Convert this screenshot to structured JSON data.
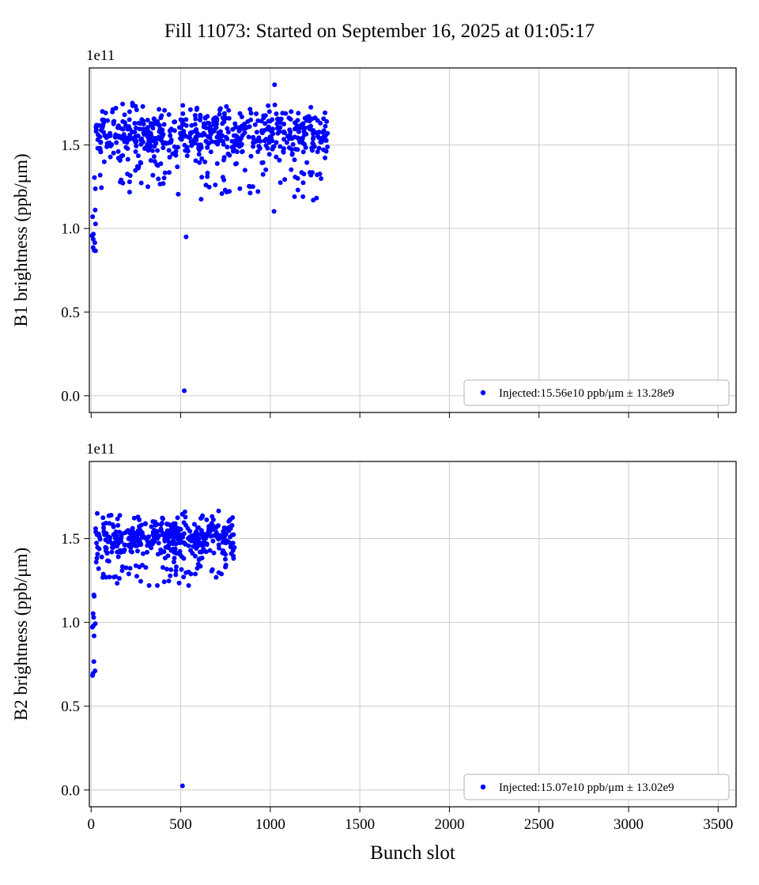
{
  "page": {
    "title": "Fill 11073: Started on September 16, 2025 at 01:05:17"
  },
  "chart_data": [
    {
      "type": "scatter",
      "name": "B1 brightness vs bunch slot",
      "ylabel": "B1 brightness (ppb/μm)",
      "xlabel": "Bunch slot",
      "offset_text": "1e11",
      "xlim": [
        -10,
        3600
      ],
      "ylim": [
        -0.1,
        1.96
      ],
      "xticks": [
        0,
        500,
        1000,
        1500,
        2000,
        2500,
        3000,
        3500
      ],
      "yticks": [
        0,
        0.5,
        1,
        1.5
      ],
      "grid": true,
      "marker_color": "#0000ff",
      "legend": {
        "label": "Injected:15.56e10 ppb/μm ± 13.28e9",
        "position": "lower right"
      },
      "summary": {
        "mean_e10": 15.56,
        "spread_e9": 13.28,
        "filled_slots_to": 1320
      },
      "seed": 42,
      "clusters": [
        {
          "n": 560,
          "x": [
            25,
            1320
          ],
          "y_mean": 1.57,
          "y_std": 0.075,
          "y_clip": [
            1.18,
            1.86
          ]
        },
        {
          "n": 90,
          "x": [
            30,
            1310
          ],
          "y_mean": 1.32,
          "y_std": 0.08,
          "y_clip": [
            1.1,
            1.48
          ]
        },
        {
          "n": 12,
          "x": [
            5,
            25
          ],
          "y_uniform": [
            0.85,
            1.32
          ]
        }
      ],
      "outliers": [
        [
          520,
          0.03
        ],
        [
          530,
          0.95
        ],
        [
          1240,
          1.17
        ]
      ]
    },
    {
      "type": "scatter",
      "name": "B2 brightness vs bunch slot",
      "ylabel": "B2 brightness (ppb/μm)",
      "xlabel": "Bunch slot",
      "offset_text": "1e11",
      "xlim": [
        -10,
        3600
      ],
      "ylim": [
        -0.1,
        1.96
      ],
      "xticks": [
        0,
        500,
        1000,
        1500,
        2000,
        2500,
        3000,
        3500
      ],
      "yticks": [
        0,
        0.5,
        1,
        1.5
      ],
      "grid": true,
      "marker_color": "#0000ff",
      "legend": {
        "label": "Injected:15.07e10 ppb/μm ± 13.02e9",
        "position": "lower right"
      },
      "summary": {
        "mean_e10": 15.07,
        "spread_e9": 13.02,
        "filled_slots_to": 805
      },
      "seed": 7,
      "clusters": [
        {
          "n": 400,
          "x": [
            25,
            805
          ],
          "y_mean": 1.51,
          "y_std": 0.06,
          "y_clip": [
            1.3,
            1.74
          ]
        },
        {
          "n": 60,
          "x": [
            30,
            800
          ],
          "y_mean": 1.31,
          "y_std": 0.05,
          "y_clip": [
            1.22,
            1.42
          ]
        },
        {
          "n": 12,
          "x": [
            5,
            25
          ],
          "y_uniform": [
            0.67,
            1.17
          ]
        }
      ],
      "outliers": [
        [
          510,
          0.025
        ]
      ]
    }
  ]
}
